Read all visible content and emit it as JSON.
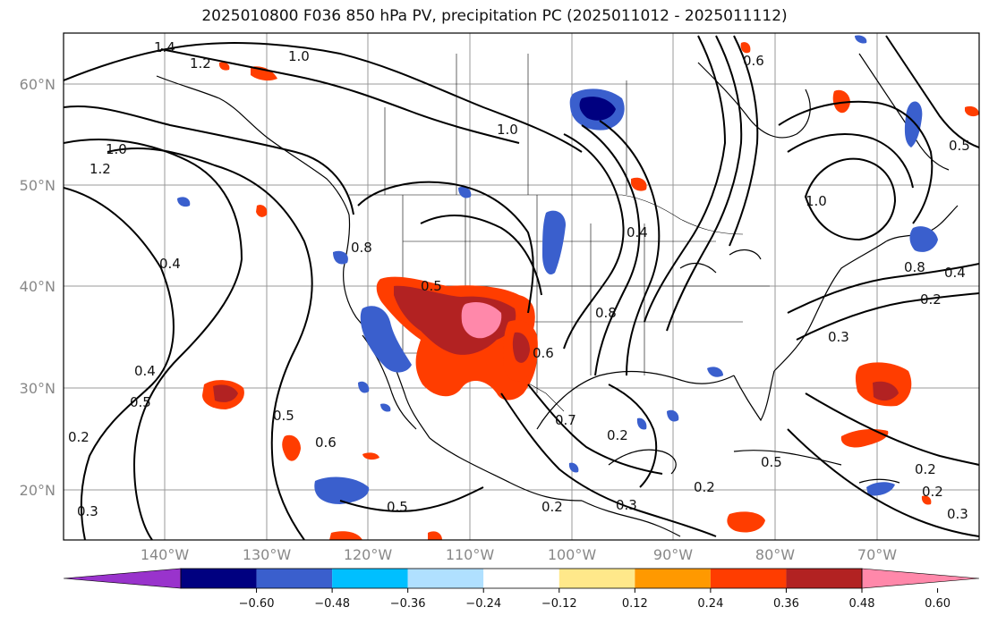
{
  "title": "2025010800 F036 850 hPa PV, precipitation PC (2025011012 - 2025011112)",
  "lat_labels": [
    "60°N",
    "50°N",
    "40°N",
    "30°N",
    "20°N"
  ],
  "lon_labels": [
    "140°W",
    "130°W",
    "120°W",
    "110°W",
    "100°W",
    "90°W",
    "80°W",
    "70°W"
  ],
  "contour_labels": [
    "1.4",
    "1.2",
    "1.0",
    "1.0",
    "1.2",
    "1.0",
    "0.8",
    "0.6",
    "0.4",
    "0.4",
    "0.5",
    "0.5",
    "0.6",
    "0.5",
    "0.3",
    "0.2",
    "0.2",
    "0.3",
    "0.2",
    "0.7",
    "0.2",
    "0.4",
    "0.8",
    "0.8",
    "0.4",
    "0.2",
    "0.3",
    "0.5",
    "0.2",
    "0.2",
    "0.3",
    "0.6",
    "0.5",
    "1.0",
    "0.5"
  ],
  "colorbar": {
    "ticks": [
      "−0.60",
      "−0.48",
      "−0.36",
      "−0.24",
      "−0.12",
      "0.12",
      "0.24",
      "0.36",
      "0.48",
      "0.60"
    ],
    "colors": [
      "#9933cc",
      "#000080",
      "#3a5fcd",
      "#00bfff",
      "#b0e0ff",
      "#ffffff",
      "#ffe88a",
      "#ff9900",
      "#ff3d00",
      "#b22222",
      "#ff88aa"
    ]
  }
}
